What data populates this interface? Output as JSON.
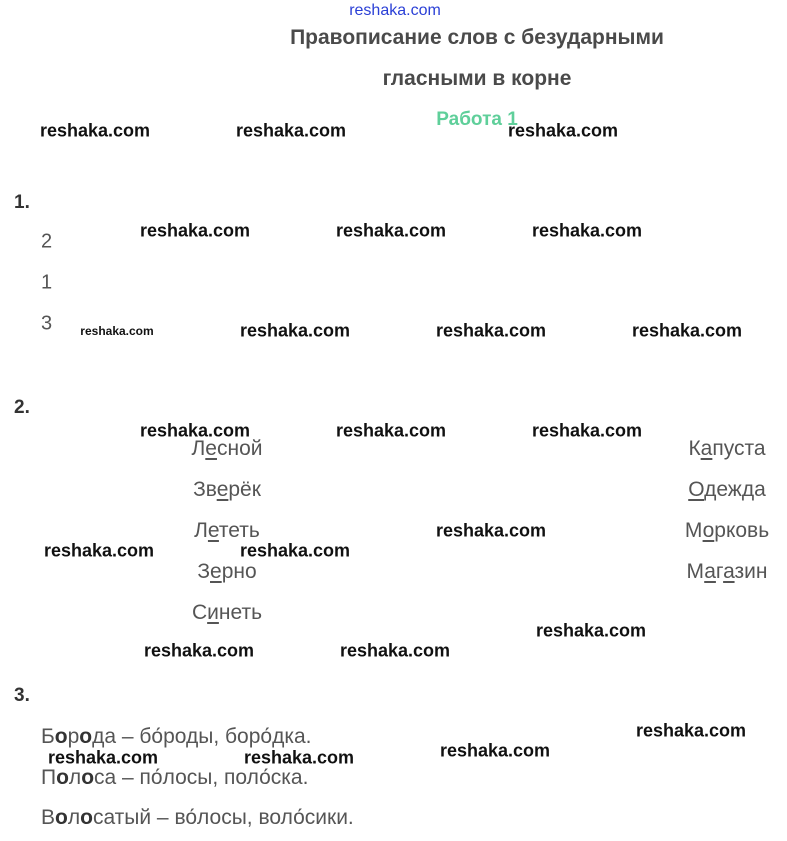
{
  "header": {
    "site": "reshaka.com",
    "title_line1": "Правописание слов с безударными",
    "title_line2": "гласными в корне",
    "work": "Работа 1"
  },
  "watermark": "reshaka.com",
  "section1": {
    "number": "1.",
    "items": [
      "2",
      "1",
      "3"
    ]
  },
  "section2": {
    "number": "2.",
    "left": [
      [
        {
          "t": "Л"
        },
        {
          "t": "е",
          "u": true
        },
        {
          "t": "сной"
        }
      ],
      [
        {
          "t": "Зв"
        },
        {
          "t": "е",
          "u": true
        },
        {
          "t": "рёк"
        }
      ],
      [
        {
          "t": "Л"
        },
        {
          "t": "е",
          "u": true
        },
        {
          "t": "теть"
        }
      ],
      [
        {
          "t": "З"
        },
        {
          "t": "е",
          "u": true
        },
        {
          "t": "рно"
        }
      ],
      [
        {
          "t": "С"
        },
        {
          "t": "и",
          "u": true
        },
        {
          "t": "неть"
        }
      ]
    ],
    "right": [
      [
        {
          "t": "К"
        },
        {
          "t": "а",
          "u": true
        },
        {
          "t": "пуста"
        }
      ],
      [
        {
          "t": "О",
          "u": true
        },
        {
          "t": "дежда"
        }
      ],
      [
        {
          "t": "М"
        },
        {
          "t": "о",
          "u": true
        },
        {
          "t": "рковь"
        }
      ],
      [
        {
          "t": "М"
        },
        {
          "t": "а",
          "u": true
        },
        {
          "t": "г"
        },
        {
          "t": "а",
          "u": true
        },
        {
          "t": "зин"
        }
      ]
    ]
  },
  "section3": {
    "number": "3.",
    "lines": [
      [
        {
          "t": "Б"
        },
        {
          "t": "о",
          "b": true
        },
        {
          "t": "р"
        },
        {
          "t": "о",
          "b": true
        },
        {
          "t": "да – бо́роды, боро́дка."
        }
      ],
      [
        {
          "t": "П"
        },
        {
          "t": "о",
          "b": true
        },
        {
          "t": "л"
        },
        {
          "t": "о",
          "b": true
        },
        {
          "t": "са – по́лосы, поло́ска."
        }
      ],
      [
        {
          "t": "В"
        },
        {
          "t": "о",
          "b": true
        },
        {
          "t": "л"
        },
        {
          "t": "о",
          "b": true
        },
        {
          "t": "сатый – во́лосы, воло́сики."
        }
      ]
    ]
  }
}
